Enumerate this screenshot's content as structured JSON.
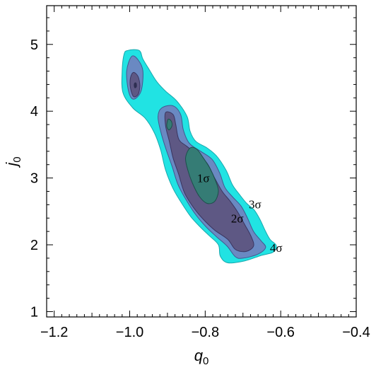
{
  "chart_data": {
    "type": "contour",
    "xlabel": {
      "main": "q",
      "sub": "0"
    },
    "ylabel": {
      "main": "j",
      "sub": "0"
    },
    "xlim": [
      -1.22,
      -0.4
    ],
    "ylim": [
      0.92,
      5.58
    ],
    "x_ticks": [
      {
        "value": -1.2,
        "label": "−1.2"
      },
      {
        "value": -1.0,
        "label": "−1.0"
      },
      {
        "value": -0.8,
        "label": "−0.8"
      },
      {
        "value": -0.6,
        "label": "−0.6"
      },
      {
        "value": -0.4,
        "label": "−0.4"
      }
    ],
    "y_ticks": [
      {
        "value": 1,
        "label": "1"
      },
      {
        "value": 2,
        "label": "2"
      },
      {
        "value": 3,
        "label": "3"
      },
      {
        "value": 4,
        "label": "4"
      },
      {
        "value": 5,
        "label": "5"
      }
    ],
    "minor_step": 0.02,
    "minor_step_y": 0.2,
    "grid": false,
    "contours": [
      {
        "level": "4σ",
        "fill": "#21e3e3",
        "stroke": "#17a8ad",
        "regions": [
          [
            [
              -1.005,
              4.91
            ],
            [
              -0.975,
              4.91
            ],
            [
              -0.965,
              4.78
            ],
            [
              -0.948,
              4.62
            ],
            [
              -0.928,
              4.44
            ],
            [
              -0.905,
              4.3
            ],
            [
              -0.875,
              4.15
            ],
            [
              -0.848,
              3.92
            ],
            [
              -0.84,
              3.7
            ],
            [
              -0.825,
              3.55
            ],
            [
              -0.795,
              3.45
            ],
            [
              -0.77,
              3.33
            ],
            [
              -0.745,
              3.12
            ],
            [
              -0.728,
              2.9
            ],
            [
              -0.71,
              2.76
            ],
            [
              -0.69,
              2.62
            ],
            [
              -0.67,
              2.52
            ],
            [
              -0.655,
              2.38
            ],
            [
              -0.64,
              2.2
            ],
            [
              -0.628,
              2.08
            ],
            [
              -0.612,
              1.99
            ],
            [
              -0.62,
              1.89
            ],
            [
              -0.652,
              1.84
            ],
            [
              -0.695,
              1.76
            ],
            [
              -0.74,
              1.73
            ],
            [
              -0.76,
              1.83
            ],
            [
              -0.765,
              2.0
            ],
            [
              -0.79,
              2.14
            ],
            [
              -0.812,
              2.26
            ],
            [
              -0.838,
              2.42
            ],
            [
              -0.862,
              2.62
            ],
            [
              -0.885,
              2.84
            ],
            [
              -0.905,
              3.12
            ],
            [
              -0.918,
              3.42
            ],
            [
              -0.935,
              3.68
            ],
            [
              -0.96,
              3.9
            ],
            [
              -0.992,
              4.05
            ],
            [
              -1.018,
              4.28
            ],
            [
              -1.02,
              4.6
            ],
            [
              -1.015,
              4.85
            ]
          ]
        ]
      },
      {
        "level": "3σ",
        "fill": "#6a89c2",
        "stroke": "#3f5a8f",
        "regions": [
          [
            [
              -0.995,
              4.82
            ],
            [
              -0.978,
              4.77
            ],
            [
              -0.965,
              4.6
            ],
            [
              -0.97,
              4.3
            ],
            [
              -0.99,
              4.18
            ],
            [
              -1.003,
              4.3
            ],
            [
              -1.008,
              4.6
            ]
          ],
          [
            [
              -0.915,
              4.05
            ],
            [
              -0.885,
              4.08
            ],
            [
              -0.865,
              3.95
            ],
            [
              -0.858,
              3.72
            ],
            [
              -0.842,
              3.52
            ],
            [
              -0.812,
              3.4
            ],
            [
              -0.782,
              3.28
            ],
            [
              -0.762,
              3.08
            ],
            [
              -0.748,
              2.86
            ],
            [
              -0.728,
              2.72
            ],
            [
              -0.705,
              2.58
            ],
            [
              -0.688,
              2.4
            ],
            [
              -0.672,
              2.2
            ],
            [
              -0.652,
              2.06
            ],
            [
              -0.64,
              1.96
            ],
            [
              -0.66,
              1.86
            ],
            [
              -0.7,
              1.8
            ],
            [
              -0.72,
              1.82
            ],
            [
              -0.742,
              1.98
            ],
            [
              -0.77,
              2.12
            ],
            [
              -0.798,
              2.27
            ],
            [
              -0.825,
              2.45
            ],
            [
              -0.848,
              2.65
            ],
            [
              -0.872,
              2.9
            ],
            [
              -0.888,
              3.18
            ],
            [
              -0.905,
              3.45
            ],
            [
              -0.918,
              3.7
            ],
            [
              -0.925,
              3.92
            ]
          ]
        ]
      },
      {
        "level": "2σ",
        "fill": "#5e5884",
        "stroke": "#3a3560",
        "regions": [
          [
            [
              -0.99,
              4.58
            ],
            [
              -0.978,
              4.52
            ],
            [
              -0.973,
              4.38
            ],
            [
              -0.978,
              4.25
            ],
            [
              -0.99,
              4.22
            ],
            [
              -0.998,
              4.35
            ],
            [
              -0.998,
              4.5
            ]
          ],
          [
            [
              -0.905,
              3.98
            ],
            [
              -0.885,
              3.95
            ],
            [
              -0.878,
              3.8
            ],
            [
              -0.87,
              3.58
            ],
            [
              -0.85,
              3.48
            ],
            [
              -0.822,
              3.36
            ],
            [
              -0.795,
              3.22
            ],
            [
              -0.775,
              3.0
            ],
            [
              -0.755,
              2.8
            ],
            [
              -0.735,
              2.66
            ],
            [
              -0.715,
              2.5
            ],
            [
              -0.695,
              2.3
            ],
            [
              -0.678,
              2.12
            ],
            [
              -0.672,
              1.98
            ],
            [
              -0.692,
              1.9
            ],
            [
              -0.72,
              1.93
            ],
            [
              -0.74,
              2.08
            ],
            [
              -0.775,
              2.22
            ],
            [
              -0.805,
              2.38
            ],
            [
              -0.83,
              2.55
            ],
            [
              -0.855,
              2.78
            ],
            [
              -0.87,
              3.05
            ],
            [
              -0.885,
              3.3
            ],
            [
              -0.895,
              3.55
            ],
            [
              -0.905,
              3.78
            ]
          ]
        ]
      },
      {
        "level": "1σ",
        "fill": "#357c75",
        "stroke": "#1c4f4b",
        "regions": [
          [
            [
              -0.898,
              3.88
            ],
            [
              -0.89,
              3.85
            ],
            [
              -0.888,
              3.78
            ],
            [
              -0.896,
              3.72
            ],
            [
              -0.902,
              3.78
            ]
          ],
          [
            [
              -0.84,
              3.45
            ],
            [
              -0.822,
              3.43
            ],
            [
              -0.805,
              3.3
            ],
            [
              -0.788,
              3.15
            ],
            [
              -0.772,
              2.95
            ],
            [
              -0.765,
              2.8
            ],
            [
              -0.775,
              2.65
            ],
            [
              -0.795,
              2.62
            ],
            [
              -0.815,
              2.72
            ],
            [
              -0.832,
              2.9
            ],
            [
              -0.845,
              3.1
            ],
            [
              -0.852,
              3.3
            ]
          ]
        ]
      },
      {
        "level": "peak",
        "fill": "#2f2f52",
        "stroke": "#2f2f52",
        "regions": [
          [
            [
              -0.987,
              4.42
            ],
            [
              -0.983,
              4.42
            ],
            [
              -0.982,
              4.37
            ],
            [
              -0.986,
              4.35
            ],
            [
              -0.988,
              4.38
            ]
          ]
        ]
      }
    ],
    "annotations": [
      {
        "text": "1σ",
        "x": -0.805,
        "y": 3.0
      },
      {
        "text": "2σ",
        "x": -0.715,
        "y": 2.4
      },
      {
        "text": "3σ",
        "x": -0.668,
        "y": 2.61
      },
      {
        "text": "4σ",
        "x": -0.612,
        "y": 1.96
      }
    ]
  }
}
